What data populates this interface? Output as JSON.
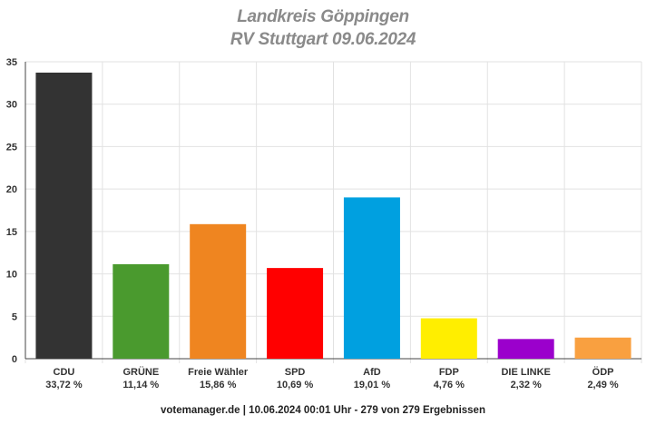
{
  "chart_data": {
    "type": "bar",
    "title": "Landkreis Göppingen",
    "subtitle": "RV Stuttgart 09.06.2024",
    "categories": [
      "CDU",
      "GRÜNE",
      "Freie Wähler",
      "SPD",
      "AfD",
      "FDP",
      "DIE LINKE",
      "ÖDP"
    ],
    "values": [
      33.72,
      11.14,
      15.86,
      10.69,
      19.01,
      4.76,
      2.32,
      2.49
    ],
    "value_labels": [
      "33,72 %",
      "11,14 %",
      "15,86 %",
      "10,69 %",
      "19,01 %",
      "4,76 %",
      "2,32 %",
      "2,49 %"
    ],
    "colors": [
      "#333333",
      "#4a9a2e",
      "#ef8520",
      "#ff0000",
      "#00a0e0",
      "#ffee00",
      "#9b00cc",
      "#f9a040"
    ],
    "ylim": [
      0,
      35
    ],
    "yticks": [
      0,
      5,
      10,
      15,
      20,
      25,
      30,
      35
    ],
    "grid": true,
    "xlabel": "",
    "ylabel": ""
  },
  "footer": "votemanager.de | 10.06.2024 00:01 Uhr - 279 von 279 Ergebnissen"
}
